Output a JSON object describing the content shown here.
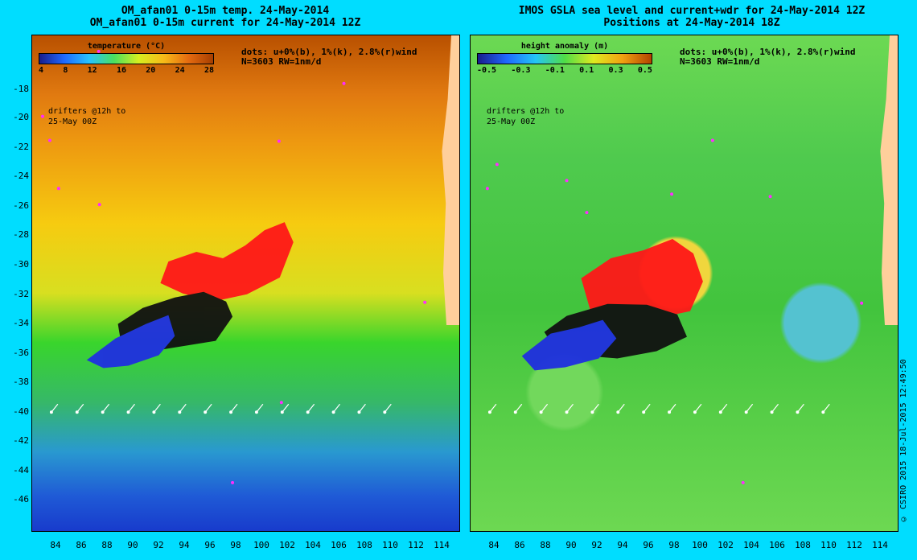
{
  "left": {
    "title_line1": "OM_afan01 0-15m temp. 24-May-2014",
    "title_line2": "OM_afan01 0-15m current for 24-May-2014 12Z",
    "legend_title": "temperature (°C)",
    "legend_ticks": [
      "4",
      "8",
      "12",
      "16",
      "20",
      "24",
      "28"
    ],
    "info_line1": "dots: u+0%(b), 1%(k), 2.8%(r)wind",
    "info_line2": "N=3603 RW=1nm/d",
    "drift_line1": "drifters @12h to",
    "drift_line2": "25-May 00Z"
  },
  "right": {
    "title_line1": "IMOS GSLA sea level and current+wdr for 24-May-2014 12Z",
    "title_line2": "Positions at 24-May-2014 18Z",
    "legend_title": "height anomaly (m)",
    "legend_ticks": [
      "-0.5",
      "-0.3",
      "-0.1",
      "0.1",
      "0.3",
      "0.5"
    ],
    "info_line1": "dots: u+0%(b), 1%(k), 2.8%(r)wind",
    "info_line2": "N=3603 RW=1nm/d",
    "drift_line1": "drifters @12h to",
    "drift_line2": "25-May 00Z"
  },
  "axes": {
    "y_labels": [
      "-18",
      "-20",
      "-22",
      "-24",
      "-26",
      "-28",
      "-30",
      "-32",
      "-34",
      "-36",
      "-38",
      "-40",
      "-42",
      "-44",
      "-46"
    ],
    "x_labels": [
      "84",
      "86",
      "88",
      "90",
      "92",
      "94",
      "96",
      "98",
      "100",
      "102",
      "104",
      "106",
      "108",
      "110",
      "112",
      "114"
    ]
  },
  "copyright": "© CSIRO 2015   18-Jul-2015 12:49:50",
  "colors": {
    "background": "#00ddff",
    "drifter_blue": "#1f2fe0",
    "drifter_black": "#111111",
    "drifter_red": "#ff1818",
    "magenta_dots": "#ff2cff",
    "coast": "#ffcf9b"
  }
}
